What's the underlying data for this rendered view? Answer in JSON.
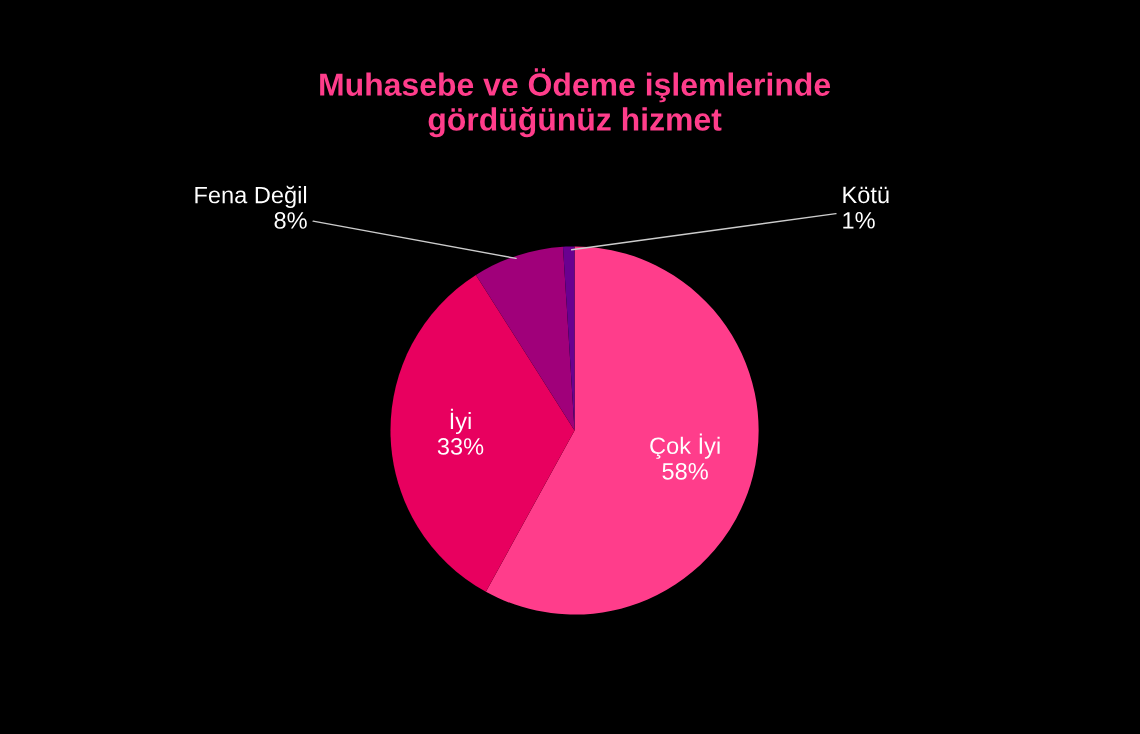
{
  "chart_data": {
    "type": "pie",
    "title": "Muhasebe ve Ödeme işlemlerinde\ngördüğünüz hizmet",
    "categories": [
      "Çok İyi",
      "İyi",
      "Fena Değil",
      "Kötü"
    ],
    "values": [
      58,
      33,
      8,
      1
    ],
    "colors": [
      "#ff3d8b",
      "#e8005f",
      "#a0007a",
      "#6a0090"
    ],
    "value_labels": [
      "58%",
      "33%",
      "8%",
      "1%"
    ],
    "legend": false
  }
}
